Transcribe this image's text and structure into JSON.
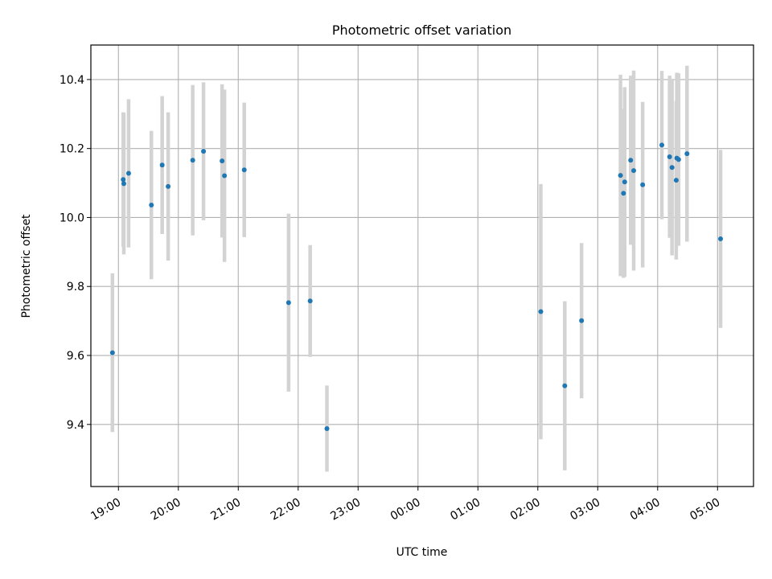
{
  "chart_data": {
    "type": "scatter",
    "title": "Photometric offset variation",
    "xlabel": "UTC time",
    "ylabel": "Photometric offset",
    "x_unit": "UTC time of day (hours; values past 24 are the next day)",
    "xlim": [
      18.54,
      29.6
    ],
    "ylim": [
      9.22,
      10.5
    ],
    "x_ticks": [
      {
        "value": 19,
        "label": "19:00"
      },
      {
        "value": 20,
        "label": "20:00"
      },
      {
        "value": 21,
        "label": "21:00"
      },
      {
        "value": 22,
        "label": "22:00"
      },
      {
        "value": 23,
        "label": "23:00"
      },
      {
        "value": 24,
        "label": "00:00"
      },
      {
        "value": 25,
        "label": "01:00"
      },
      {
        "value": 26,
        "label": "02:00"
      },
      {
        "value": 27,
        "label": "03:00"
      },
      {
        "value": 28,
        "label": "04:00"
      },
      {
        "value": 29,
        "label": "05:00"
      }
    ],
    "y_ticks": [
      {
        "value": 9.4,
        "label": "9.4"
      },
      {
        "value": 9.6,
        "label": "9.6"
      },
      {
        "value": 9.8,
        "label": "9.8"
      },
      {
        "value": 10.0,
        "label": "10.0"
      },
      {
        "value": 10.2,
        "label": "10.2"
      },
      {
        "value": 10.4,
        "label": "10.4"
      }
    ],
    "grid": true,
    "point_color": "#1f77b4",
    "errorbar_color": "#d3d3d3",
    "points": [
      {
        "x": 18.9,
        "y": 9.608,
        "err": 0.23
      },
      {
        "x": 19.08,
        "y": 10.11,
        "err": 0.195
      },
      {
        "x": 19.09,
        "y": 10.098,
        "err": 0.205
      },
      {
        "x": 19.17,
        "y": 10.128,
        "err": 0.215
      },
      {
        "x": 19.55,
        "y": 10.036,
        "err": 0.215
      },
      {
        "x": 19.73,
        "y": 10.152,
        "err": 0.2
      },
      {
        "x": 19.83,
        "y": 10.09,
        "err": 0.215
      },
      {
        "x": 20.24,
        "y": 10.166,
        "err": 0.218
      },
      {
        "x": 20.42,
        "y": 10.192,
        "err": 0.2
      },
      {
        "x": 20.73,
        "y": 10.164,
        "err": 0.222
      },
      {
        "x": 20.77,
        "y": 10.121,
        "err": 0.25
      },
      {
        "x": 21.1,
        "y": 10.138,
        "err": 0.195
      },
      {
        "x": 21.84,
        "y": 9.753,
        "err": 0.258
      },
      {
        "x": 22.2,
        "y": 9.758,
        "err": 0.162
      },
      {
        "x": 22.48,
        "y": 9.388,
        "err": 0.125
      },
      {
        "x": 26.05,
        "y": 9.727,
        "err": 0.37
      },
      {
        "x": 26.45,
        "y": 9.512,
        "err": 0.245
      },
      {
        "x": 26.73,
        "y": 9.701,
        "err": 0.225
      },
      {
        "x": 27.38,
        "y": 10.122,
        "err": 0.292
      },
      {
        "x": 27.43,
        "y": 10.07,
        "err": 0.245
      },
      {
        "x": 27.45,
        "y": 10.103,
        "err": 0.275
      },
      {
        "x": 27.55,
        "y": 10.166,
        "err": 0.245
      },
      {
        "x": 27.6,
        "y": 10.136,
        "err": 0.29
      },
      {
        "x": 27.75,
        "y": 10.095,
        "err": 0.24
      },
      {
        "x": 28.07,
        "y": 10.21,
        "err": 0.215
      },
      {
        "x": 28.2,
        "y": 10.176,
        "err": 0.235
      },
      {
        "x": 28.24,
        "y": 10.145,
        "err": 0.255
      },
      {
        "x": 28.31,
        "y": 10.108,
        "err": 0.23
      },
      {
        "x": 28.32,
        "y": 10.172,
        "err": 0.248
      },
      {
        "x": 28.35,
        "y": 10.168,
        "err": 0.25
      },
      {
        "x": 28.49,
        "y": 10.185,
        "err": 0.255
      },
      {
        "x": 29.05,
        "y": 9.938,
        "err": 0.258
      }
    ]
  }
}
